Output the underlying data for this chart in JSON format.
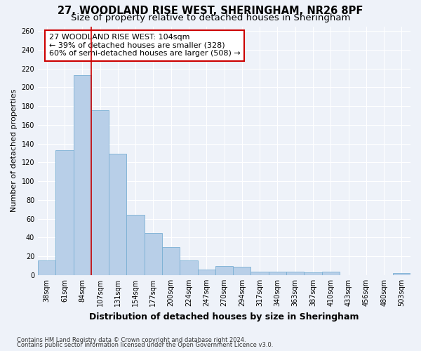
{
  "title1": "27, WOODLAND RISE WEST, SHERINGHAM, NR26 8PF",
  "title2": "Size of property relative to detached houses in Sheringham",
  "xlabel": "Distribution of detached houses by size in Sheringham",
  "ylabel": "Number of detached properties",
  "categories": [
    "38sqm",
    "61sqm",
    "84sqm",
    "107sqm",
    "131sqm",
    "154sqm",
    "177sqm",
    "200sqm",
    "224sqm",
    "247sqm",
    "270sqm",
    "294sqm",
    "317sqm",
    "340sqm",
    "363sqm",
    "387sqm",
    "410sqm",
    "433sqm",
    "456sqm",
    "480sqm",
    "503sqm"
  ],
  "values": [
    16,
    133,
    213,
    176,
    129,
    64,
    45,
    30,
    16,
    6,
    10,
    9,
    4,
    4,
    4,
    3,
    4,
    0,
    0,
    0,
    2
  ],
  "bar_color": "#b8cfe8",
  "bar_edge_color": "#7aafd4",
  "highlight_line_index": 3,
  "highlight_line_color": "#cc0000",
  "annotation_text": "27 WOODLAND RISE WEST: 104sqm\n← 39% of detached houses are smaller (328)\n60% of semi-detached houses are larger (508) →",
  "annotation_box_color": "#ffffff",
  "annotation_box_edge": "#cc0000",
  "ylim": [
    0,
    265
  ],
  "yticks": [
    0,
    20,
    40,
    60,
    80,
    100,
    120,
    140,
    160,
    180,
    200,
    220,
    240,
    260
  ],
  "footer1": "Contains HM Land Registry data © Crown copyright and database right 2024.",
  "footer2": "Contains public sector information licensed under the Open Government Licence v3.0.",
  "bg_color": "#eef2f9",
  "grid_color": "#ffffff",
  "title1_fontsize": 10.5,
  "title2_fontsize": 9.5,
  "xlabel_fontsize": 9,
  "ylabel_fontsize": 8,
  "tick_fontsize": 7,
  "footer_fontsize": 6,
  "annot_fontsize": 8
}
